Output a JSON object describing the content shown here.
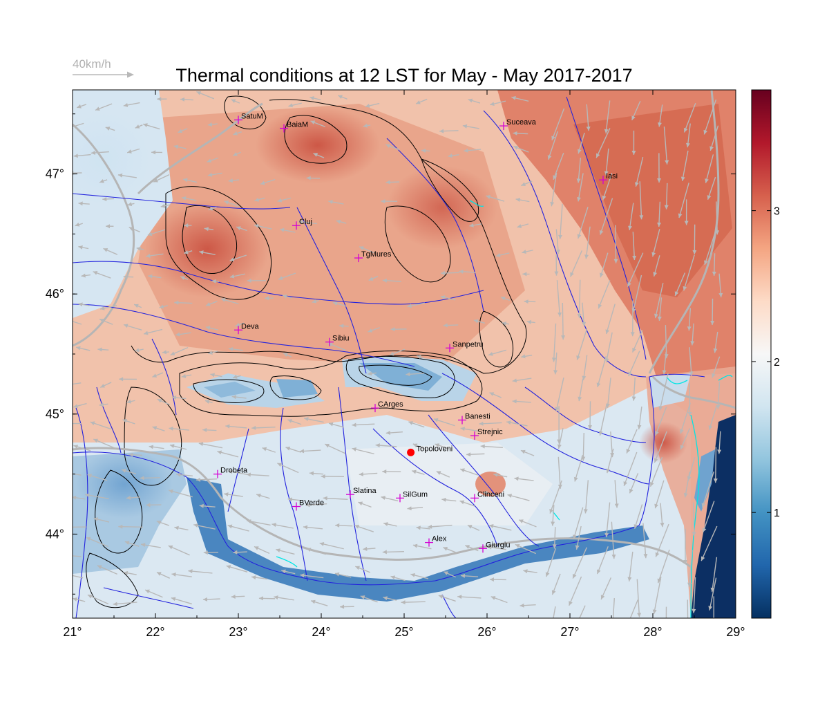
{
  "title": "Thermal conditions at 12 LST for May - May  2017-2017",
  "wind_reference": {
    "label": "40km/h",
    "speed": 40,
    "unit": "km/h"
  },
  "axes": {
    "lon_range": [
      21,
      29
    ],
    "lat_range": [
      43.3,
      47.7
    ],
    "lon_ticks": [
      {
        "value": 21,
        "label": "21°"
      },
      {
        "value": 22,
        "label": "22°"
      },
      {
        "value": 23,
        "label": "23°"
      },
      {
        "value": 24,
        "label": "24°"
      },
      {
        "value": 25,
        "label": "25°"
      },
      {
        "value": 26,
        "label": "26°"
      },
      {
        "value": 27,
        "label": "27°"
      },
      {
        "value": 28,
        "label": "28°"
      },
      {
        "value": 29,
        "label": "29°"
      }
    ],
    "lat_ticks": [
      {
        "value": 44,
        "label": "44°"
      },
      {
        "value": 45,
        "label": "45°"
      },
      {
        "value": 46,
        "label": "46°"
      },
      {
        "value": 47,
        "label": "47°"
      }
    ]
  },
  "colorbar": {
    "range": [
      0.3,
      3.8
    ],
    "ticks": [
      {
        "value": 1,
        "label": "1"
      },
      {
        "value": 2,
        "label": "2"
      },
      {
        "value": 3,
        "label": "3"
      }
    ],
    "colors": [
      "#053061",
      "#2166ac",
      "#4393c3",
      "#92c5de",
      "#d1e5f0",
      "#f7f7f7",
      "#fddbc7",
      "#f4a582",
      "#d6604d",
      "#b2182b",
      "#67001f"
    ]
  },
  "colors": {
    "rivers": "#2222dd",
    "borders": "#b5b5b5",
    "city_marker": "#d400d4",
    "highlight_marker": "#ff0000",
    "wind_arrows": "#b8b8b8",
    "coast_cyan": "#00e5e5",
    "contours": "#000000"
  },
  "cities": [
    {
      "name": "SatuM",
      "lon": 23.0,
      "lat": 47.45
    },
    {
      "name": "BaiaM",
      "lon": 23.55,
      "lat": 47.38
    },
    {
      "name": "Suceava",
      "lon": 26.2,
      "lat": 47.4
    },
    {
      "name": "Iasi",
      "lon": 27.4,
      "lat": 46.95
    },
    {
      "name": "Cluj",
      "lon": 23.7,
      "lat": 46.57
    },
    {
      "name": "TgMures",
      "lon": 24.45,
      "lat": 46.3
    },
    {
      "name": "Deva",
      "lon": 23.0,
      "lat": 45.7
    },
    {
      "name": "Sibiu",
      "lon": 24.1,
      "lat": 45.6
    },
    {
      "name": "Sanpetru",
      "lon": 25.55,
      "lat": 45.55
    },
    {
      "name": "CArges",
      "lon": 24.65,
      "lat": 45.05
    },
    {
      "name": "Banesti",
      "lon": 25.7,
      "lat": 44.95
    },
    {
      "name": "Strejnic",
      "lon": 25.85,
      "lat": 44.82
    },
    {
      "name": "Drobeta",
      "lon": 22.75,
      "lat": 44.5
    },
    {
      "name": "Slatina",
      "lon": 24.35,
      "lat": 44.33
    },
    {
      "name": "SilGum",
      "lon": 24.95,
      "lat": 44.3
    },
    {
      "name": "Clinceni",
      "lon": 25.85,
      "lat": 44.3
    },
    {
      "name": "BVerde",
      "lon": 23.7,
      "lat": 44.23
    },
    {
      "name": "Alex",
      "lon": 25.3,
      "lat": 43.93
    },
    {
      "name": "Giurgiu",
      "lon": 25.95,
      "lat": 43.88
    }
  ],
  "highlight_station": {
    "name": "Topoloveni",
    "lon": 25.08,
    "lat": 44.68
  }
}
